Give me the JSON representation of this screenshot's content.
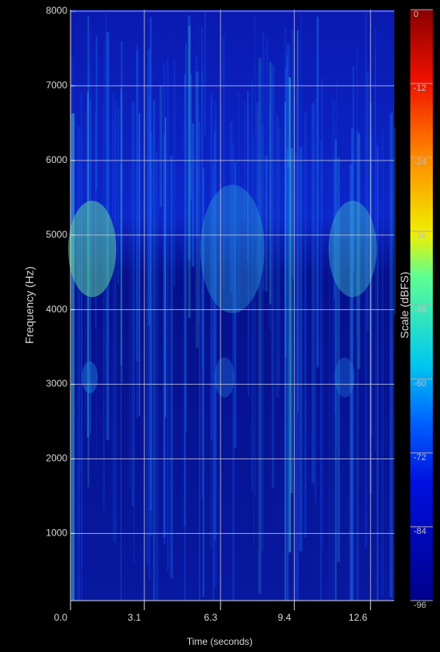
{
  "chart_data": {
    "type": "spectrogram",
    "x_label": "Time (seconds)",
    "y_label": "Frequency (Hz)",
    "xlim": [
      0,
      13.6
    ],
    "xticks": [
      {
        "value": 0,
        "label": "0.0"
      },
      3.1,
      6.3,
      9.4,
      12.6
    ],
    "ylim": [
      100,
      8000
    ],
    "yticks": [
      1000,
      2000,
      3000,
      4000,
      5000,
      6000,
      7000,
      8000
    ],
    "grid": true,
    "colorbar": {
      "label": "Scale (dBFS)",
      "lim": [
        -96,
        0
      ],
      "ticks": [
        0,
        -12,
        -24,
        -36,
        -48,
        -60,
        -72,
        -84,
        -96
      ]
    }
  }
}
